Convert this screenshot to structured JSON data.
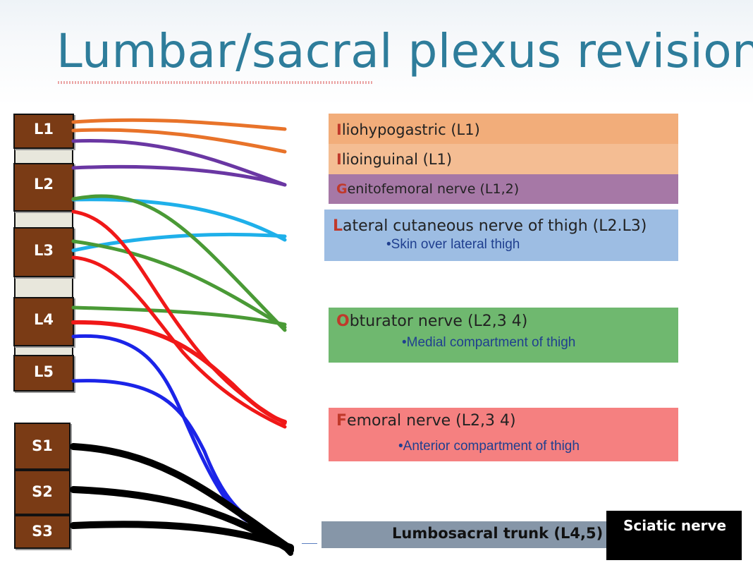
{
  "title": "Lumbar/sacral plexus revision",
  "vertebrae": {
    "lumbar": [
      "L1",
      "L2",
      "L3",
      "L4",
      "L5"
    ],
    "sacral": [
      "S1",
      "S2",
      "S3"
    ]
  },
  "nerves": [
    {
      "initial": "I",
      "rest": "liohypogastric (L1)",
      "sub": "",
      "color": "#f2ad7a"
    },
    {
      "initial": "I",
      "rest": "lioinguinal (L1)",
      "sub": "",
      "color": "#f4bd93"
    },
    {
      "initial": "G",
      "rest": "enitofemoral  nerve (L1,2)",
      "sub": "",
      "color": "#a678a6"
    },
    {
      "initial": "L",
      "rest": "ateral cutaneous nerve of thigh (L2.L3)",
      "sub": "•Skin over lateral thigh",
      "color": "#9dbde3"
    },
    {
      "initial": "O",
      "rest": "bturator nerve  (L2,3 4)",
      "sub": "•Medial compartment of thigh",
      "color": "#6fb86f"
    },
    {
      "initial": "F",
      "rest": "emoral nerve  (L2,3 4)",
      "sub": "•Anterior compartment of thigh",
      "color": "#f58080"
    }
  ],
  "trunk": {
    "label": "Lumbosacral  trunk (L4,5)",
    "color": "#8696a8"
  },
  "sciatic": {
    "label": "Sciatic nerve"
  },
  "line_colors": {
    "orange": "#e8732a",
    "purple": "#6a37a3",
    "cyan": "#1fb0ea",
    "green": "#4a9a36",
    "red": "#f01818",
    "blue": "#1b24e8",
    "black": "#000000"
  }
}
